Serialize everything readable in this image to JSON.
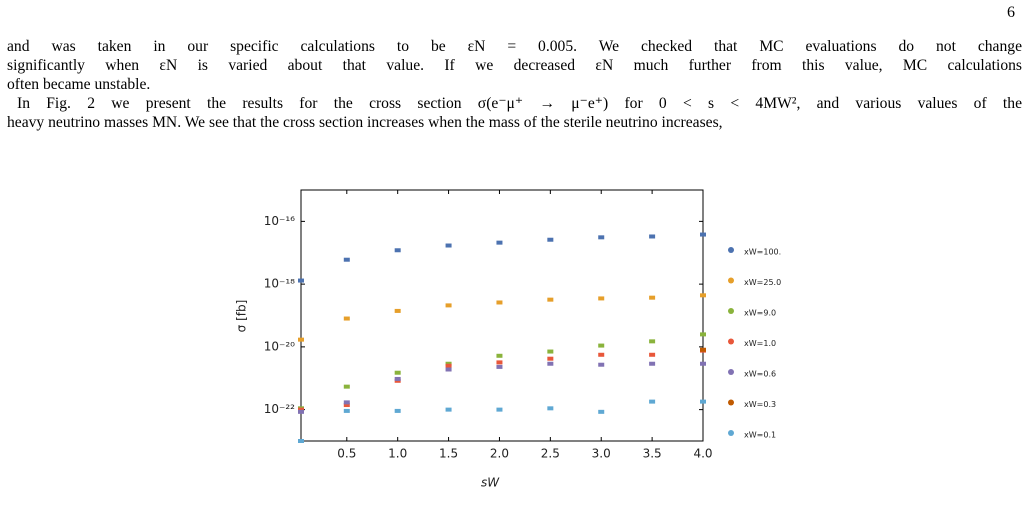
{
  "page_number": "6",
  "paragraphs": [
    {
      "lines": [
        "and was taken in our specific calculations to be εN = 0.005. We checked that MC evaluations do not change",
        "significantly when εN is varied about that value. If we decreased εN much further from this value, MC calculations",
        "often became unstable."
      ]
    },
    {
      "lines": [
        "In Fig. 2 we present the results for the cross section σ(e⁻μ⁺ → μ⁻e⁺) for 0 < s < 4MW², and various values of the",
        "heavy neutrino masses MN. We see that the cross section increases when the mass of the sterile neutrino increases,"
      ]
    }
  ],
  "chart_data": {
    "type": "scatter",
    "xlabel": "sW",
    "ylabel": "σ [fb]",
    "yscale": "log",
    "x": [
      0.05,
      0.5,
      1.0,
      1.5,
      2.0,
      2.5,
      3.0,
      3.5,
      4.0
    ],
    "xlim": [
      0.05,
      4.0
    ],
    "ylim": [
      1e-23,
      1e-15
    ],
    "xticks": [
      0.5,
      {
        "value": 1,
        "label": "1.0"
      },
      1.5,
      {
        "value": 2,
        "label": "2.0"
      },
      2.5,
      {
        "value": 3,
        "label": "3.0"
      },
      3.5,
      {
        "value": 4,
        "label": "4.0"
      }
    ],
    "yticks": [
      {
        "value": 1e-16,
        "label": "10⁻¹⁶"
      },
      {
        "value": 1e-18,
        "label": "10⁻¹⁸"
      },
      {
        "value": 1e-20,
        "label": "10⁻²⁰"
      },
      {
        "value": 1e-22,
        "label": "10⁻²²"
      }
    ],
    "legend": "right",
    "series": [
      {
        "name": "xW=100.",
        "color": "#4c72b0",
        "values": [
          1.3e-18,
          6e-18,
          1.2e-17,
          1.7e-17,
          2.1e-17,
          2.6e-17,
          3.1e-17,
          3.3e-17,
          3.8e-17
        ]
      },
      {
        "name": "xW=25.0",
        "color": "#e69f2a",
        "values": [
          1.7e-20,
          8e-20,
          1.4e-19,
          2.1e-19,
          2.6e-19,
          3.2e-19,
          3.5e-19,
          3.7e-19,
          4.4e-19
        ]
      },
      {
        "name": "xW=9.0",
        "color": "#8ab33c",
        "values": [
          1.1e-22,
          5.4e-22,
          1.5e-21,
          2.9e-21,
          5.2e-21,
          7.1e-21,
          1.1e-20,
          1.5e-20,
          2.5e-20
        ]
      },
      {
        "name": "xW=1.0",
        "color": "#e8573a",
        "values": [
          1e-22,
          1.4e-22,
          8.3e-22,
          2.5e-21,
          3.2e-21,
          4.2e-21,
          5.6e-21,
          5.6e-21,
          7.6e-21
        ]
      },
      {
        "name": "xW=0.6",
        "color": "#8172b3",
        "values": [
          8.5e-23,
          1.7e-22,
          9.5e-22,
          1.9e-21,
          2.3e-21,
          2.9e-21,
          2.7e-21,
          2.9e-21,
          2.9e-21
        ]
      },
      {
        "name": "xW=0.3",
        "color": "#c05a00",
        "values": [
          null,
          null,
          null,
          null,
          null,
          null,
          null,
          null,
          8.1e-21
        ]
      },
      {
        "name": "xW=0.1",
        "color": "#5fa8d3",
        "values": [
          1e-23,
          9.1e-23,
          9.1e-23,
          1e-22,
          1e-22,
          1.1e-22,
          8.5e-23,
          1.8e-22,
          1.8e-22
        ]
      }
    ]
  }
}
